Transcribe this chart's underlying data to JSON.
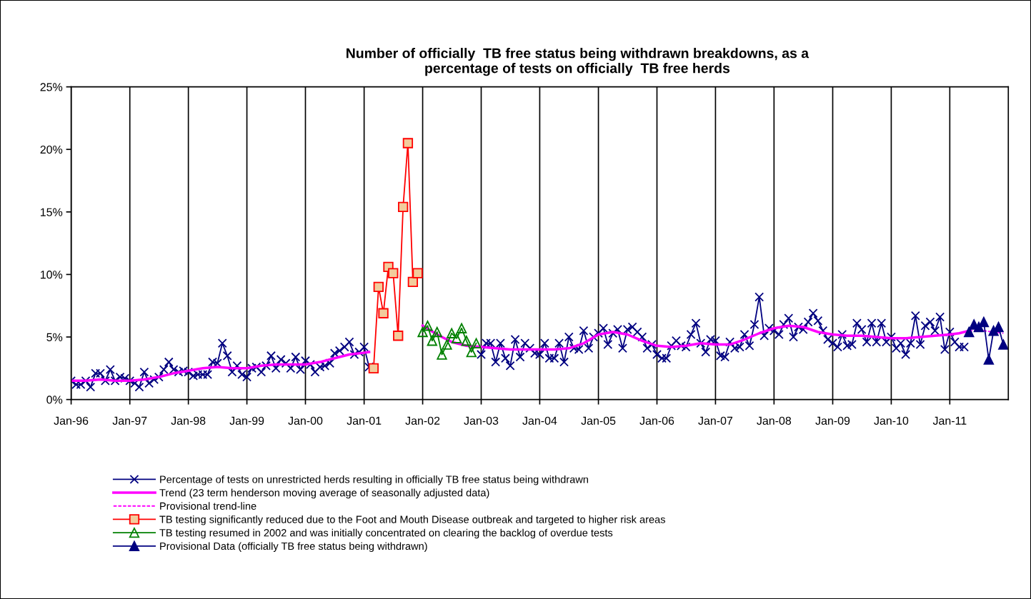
{
  "chart_data": {
    "type": "line",
    "title": "Number of officially  TB free status being withdrawn breakdowns, as a\npercentage of tests on officially  TB free herds",
    "x": [
      "1996-01",
      "1996-02",
      "1996-03",
      "1996-04",
      "1996-05",
      "1996-06",
      "1996-07",
      "1996-08",
      "1996-09",
      "1996-10",
      "1996-11",
      "1996-12",
      "1997-01",
      "1997-02",
      "1997-03",
      "1997-04",
      "1997-05",
      "1997-06",
      "1997-07",
      "1997-08",
      "1997-09",
      "1997-10",
      "1997-11",
      "1997-12",
      "1998-01",
      "1998-02",
      "1998-03",
      "1998-04",
      "1998-05",
      "1998-06",
      "1998-07",
      "1998-08",
      "1998-09",
      "1998-10",
      "1998-11",
      "1998-12",
      "1999-01",
      "1999-02",
      "1999-03",
      "1999-04",
      "1999-05",
      "1999-06",
      "1999-07",
      "1999-08",
      "1999-09",
      "1999-10",
      "1999-11",
      "1999-12",
      "2000-01",
      "2000-02",
      "2000-03",
      "2000-04",
      "2000-05",
      "2000-06",
      "2000-07",
      "2000-08",
      "2000-09",
      "2000-10",
      "2000-11",
      "2000-12",
      "2001-01",
      "2001-02",
      "2001-03",
      "2001-04",
      "2001-05",
      "2001-06",
      "2001-07",
      "2001-08",
      "2001-09",
      "2001-10",
      "2001-11",
      "2001-12",
      "2002-01",
      "2002-02",
      "2002-03",
      "2002-04",
      "2002-05",
      "2002-06",
      "2002-07",
      "2002-08",
      "2002-09",
      "2002-10",
      "2002-11",
      "2002-12",
      "2003-01",
      "2003-02",
      "2003-03",
      "2003-04",
      "2003-05",
      "2003-06",
      "2003-07",
      "2003-08",
      "2003-09",
      "2003-10",
      "2003-11",
      "2003-12",
      "2004-01",
      "2004-02",
      "2004-03",
      "2004-04",
      "2004-05",
      "2004-06",
      "2004-07",
      "2004-08",
      "2004-09",
      "2004-10",
      "2004-11",
      "2004-12",
      "2005-01",
      "2005-02",
      "2005-03",
      "2005-04",
      "2005-05",
      "2005-06",
      "2005-07",
      "2005-08",
      "2005-09",
      "2005-10",
      "2005-11",
      "2005-12",
      "2006-01",
      "2006-02",
      "2006-03",
      "2006-04",
      "2006-05",
      "2006-06",
      "2006-07",
      "2006-08",
      "2006-09",
      "2006-10",
      "2006-11",
      "2006-12",
      "2007-01",
      "2007-02",
      "2007-03",
      "2007-04",
      "2007-05",
      "2007-06",
      "2007-07",
      "2007-08",
      "2007-09",
      "2007-10",
      "2007-11",
      "2007-12",
      "2008-01",
      "2008-02",
      "2008-03",
      "2008-04",
      "2008-05",
      "2008-06",
      "2008-07",
      "2008-08",
      "2008-09",
      "2008-10",
      "2008-11",
      "2008-12",
      "2009-01",
      "2009-02",
      "2009-03",
      "2009-04",
      "2009-05",
      "2009-06",
      "2009-07",
      "2009-08",
      "2009-09",
      "2009-10",
      "2009-11",
      "2009-12",
      "2010-01",
      "2010-02",
      "2010-03",
      "2010-04",
      "2010-05",
      "2010-06",
      "2010-07",
      "2010-08",
      "2010-09",
      "2010-10",
      "2010-11",
      "2010-12",
      "2011-01",
      "2011-02",
      "2011-03",
      "2011-04"
    ],
    "series": [
      {
        "name": "Percentage of tests on unrestricted herds resulting in officially TB free status being withdrawn",
        "color": "#000080",
        "marker": "cross",
        "values": [
          1.5,
          1.2,
          1.2,
          1.5,
          1.0,
          2.1,
          2.1,
          1.5,
          2.4,
          1.5,
          1.8,
          1.7,
          1.5,
          1.3,
          1.0,
          2.2,
          1.3,
          1.6,
          1.8,
          2.4,
          3.0,
          2.4,
          2.2,
          2.3,
          2.2,
          1.9,
          2.0,
          2.0,
          2.0,
          3.0,
          2.9,
          4.5,
          3.5,
          2.2,
          2.7,
          2.0,
          1.8,
          2.5,
          2.6,
          2.2,
          2.7,
          3.5,
          2.5,
          3.2,
          2.9,
          2.5,
          3.4,
          2.4,
          3.1,
          2.8,
          2.2,
          2.6,
          2.7,
          2.9,
          3.7,
          3.9,
          4.2,
          4.6,
          3.6,
          3.8,
          4.2,
          2.6,
          null,
          null,
          null,
          null,
          null,
          null,
          null,
          null,
          null,
          null,
          null,
          null,
          null,
          null,
          null,
          null,
          null,
          null,
          null,
          null,
          null,
          null,
          3.6,
          4.5,
          4.5,
          3.0,
          4.5,
          3.3,
          2.7,
          4.8,
          3.4,
          4.5,
          4.1,
          3.7,
          3.6,
          4.5,
          3.3,
          3.3,
          4.5,
          3.0,
          5.0,
          4.1,
          4.0,
          5.5,
          4.1,
          5.0,
          5.3,
          5.7,
          4.4,
          5.3,
          5.6,
          4.1,
          5.6,
          5.8,
          5.4,
          5.0,
          4.1,
          4.4,
          3.6,
          3.3,
          3.3,
          4.3,
          4.7,
          4.3,
          4.2,
          5.2,
          6.1,
          4.5,
          3.8,
          4.8,
          4.7,
          3.5,
          3.4,
          4.6,
          4.1,
          4.2,
          5.2,
          4.3,
          6.0,
          8.2,
          5.1,
          5.7,
          5.5,
          5.2,
          6.0,
          6.5,
          5.0,
          5.8,
          5.6,
          6.2,
          6.9,
          6.3,
          5.5,
          4.8,
          4.5,
          4.2,
          5.2,
          4.3,
          4.4,
          6.1,
          5.6,
          4.6,
          6.1,
          4.6,
          6.1,
          4.6,
          5.0,
          4.1,
          4.5,
          3.6,
          4.5,
          6.7,
          4.4,
          5.9,
          6.2,
          5.5,
          6.6,
          4.0,
          5.4,
          4.6,
          4.2,
          4.2
        ]
      },
      {
        "name": "Trend (23 term henderson moving average of seasonally adjusted data)",
        "color": "#ff00ff",
        "marker": "none",
        "x": [
          "1996-01",
          "1996-04",
          "1996-07",
          "1996-10",
          "1997-01",
          "1997-04",
          "1997-07",
          "1997-10",
          "1998-01",
          "1998-04",
          "1998-07",
          "1998-10",
          "1999-01",
          "1999-04",
          "1999-07",
          "1999-10",
          "2000-01",
          "2000-04",
          "2000-07",
          "2000-10",
          "2001-02",
          "2001-03",
          "2002-01",
          "2002-04",
          "2002-07",
          "2002-10",
          "2003-01",
          "2003-04",
          "2003-07",
          "2003-10",
          "2004-01",
          "2004-04",
          "2004-07",
          "2004-10",
          "2005-01",
          "2005-04",
          "2005-07",
          "2005-10",
          "2006-01",
          "2006-04",
          "2006-07",
          "2006-10",
          "2007-01",
          "2007-04",
          "2007-07",
          "2007-10",
          "2008-01",
          "2008-04",
          "2008-07",
          "2008-10",
          "2009-01",
          "2009-04",
          "2009-07",
          "2009-10",
          "2010-01",
          "2010-04",
          "2010-07",
          "2010-10",
          "2011-01",
          "2011-03",
          "2011-05"
        ],
        "values": [
          1.5,
          1.5,
          1.6,
          1.5,
          1.5,
          1.6,
          1.8,
          2.1,
          2.3,
          2.5,
          2.6,
          2.5,
          2.5,
          2.7,
          2.8,
          2.8,
          2.8,
          3.0,
          3.3,
          3.6,
          3.8,
          null,
          5.9,
          5.2,
          4.6,
          4.3,
          4.2,
          4.1,
          4.0,
          4.0,
          4.0,
          4.0,
          4.1,
          4.5,
          5.2,
          5.4,
          5.2,
          4.7,
          4.3,
          4.2,
          4.3,
          4.5,
          4.4,
          4.4,
          4.8,
          5.3,
          5.7,
          5.9,
          5.8,
          5.4,
          5.2,
          5.1,
          5.1,
          5.0,
          4.9,
          4.9,
          5.0,
          5.1,
          5.2,
          5.3,
          5.5
        ]
      },
      {
        "name": "Provisional trend-line",
        "color": "#ff00ff",
        "marker": "none",
        "line_style": "dashed",
        "x": [
          "2011-05",
          "2011-08",
          "2011-12"
        ],
        "values": [
          5.5,
          5.5,
          5.3
        ]
      },
      {
        "name": "TB testing significantly reduced due to the Foot and Mouth Disease outbreak and targeted to higher risk areas",
        "color": "#ff0000",
        "marker": "square",
        "x": [
          "2001-03",
          "2001-04",
          "2001-05",
          "2001-06",
          "2001-07",
          "2001-08",
          "2001-09",
          "2001-10",
          "2001-11",
          "2001-12"
        ],
        "values": [
          2.5,
          9.0,
          6.9,
          10.6,
          10.1,
          5.1,
          15.4,
          20.5,
          9.4,
          10.1
        ]
      },
      {
        "name": "TB testing resumed in 2002 and was initially concentrated on clearing the backlog of overdue tests",
        "color": "#008000",
        "marker": "triangle",
        "x": [
          "2002-01",
          "2002-02",
          "2002-03",
          "2002-04",
          "2002-05",
          "2002-06",
          "2002-07",
          "2002-08",
          "2002-09",
          "2002-10",
          "2002-11",
          "2002-12"
        ],
        "values": [
          5.4,
          5.9,
          4.7,
          5.4,
          3.6,
          4.4,
          5.3,
          4.9,
          5.7,
          4.7,
          3.8,
          4.5
        ]
      },
      {
        "name": "Provisional Data (officially TB free status being withdrawn)",
        "color": "#000080",
        "marker": "triangle",
        "x": [
          "2011-05",
          "2011-06",
          "2011-07",
          "2011-08",
          "2011-09",
          "2011-10",
          "2011-11",
          "2011-12"
        ],
        "values": [
          5.4,
          6.0,
          5.8,
          6.2,
          3.2,
          5.5,
          5.8,
          4.4
        ]
      }
    ],
    "xlim": [
      "1996-01",
      "2012-01"
    ],
    "xticks": [
      {
        "value": "1996-01",
        "label": "Jan-96"
      },
      {
        "value": "1997-01",
        "label": "Jan-97"
      },
      {
        "value": "1998-01",
        "label": "Jan-98"
      },
      {
        "value": "1999-01",
        "label": "Jan-99"
      },
      {
        "value": "2000-01",
        "label": "Jan-00"
      },
      {
        "value": "2001-01",
        "label": "Jan-01"
      },
      {
        "value": "2002-01",
        "label": "Jan-02"
      },
      {
        "value": "2003-01",
        "label": "Jan-03"
      },
      {
        "value": "2004-01",
        "label": "Jan-04"
      },
      {
        "value": "2005-01",
        "label": "Jan-05"
      },
      {
        "value": "2006-01",
        "label": "Jan-06"
      },
      {
        "value": "2007-01",
        "label": "Jan-07"
      },
      {
        "value": "2008-01",
        "label": "Jan-08"
      },
      {
        "value": "2009-01",
        "label": "Jan-09"
      },
      {
        "value": "2010-01",
        "label": "Jan-10"
      },
      {
        "value": "2011-01",
        "label": "Jan-11"
      }
    ],
    "ylim": [
      0,
      25
    ],
    "yticks": [
      {
        "value": 0,
        "label": "0%"
      },
      {
        "value": 5,
        "label": "5%"
      },
      {
        "value": 10,
        "label": "10%"
      },
      {
        "value": 15,
        "label": "15%"
      },
      {
        "value": 20,
        "label": "20%"
      },
      {
        "value": 25,
        "label": "25%"
      }
    ],
    "grid": "x",
    "legend": "bottom"
  }
}
